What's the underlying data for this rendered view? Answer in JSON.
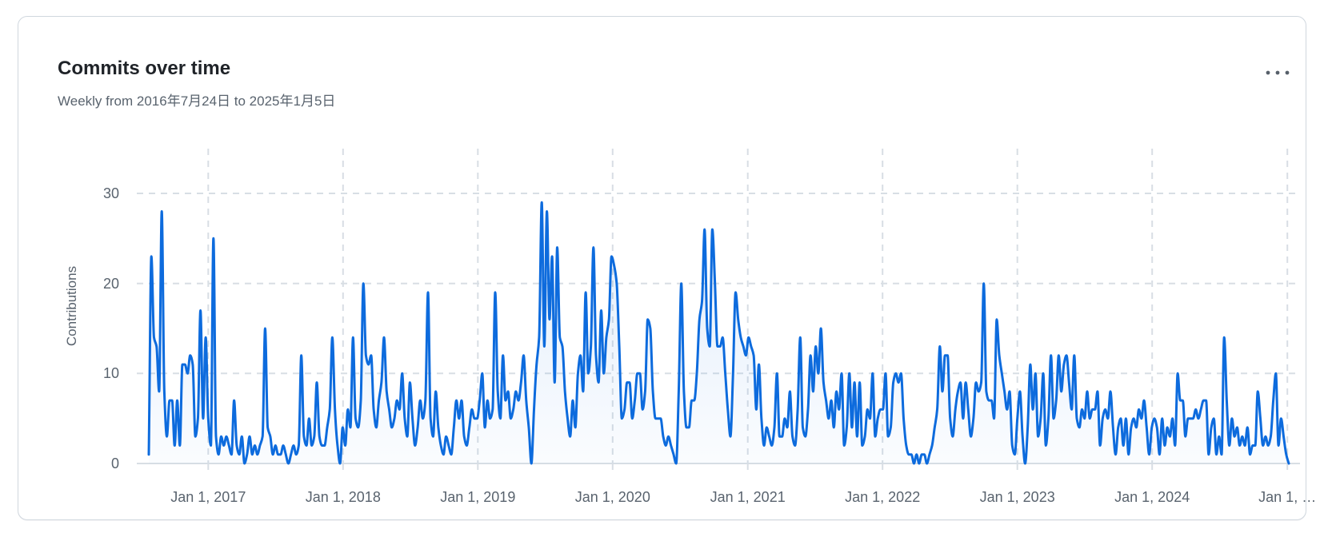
{
  "card": {
    "title": "Commits over time",
    "subtitle": "Weekly from 2016年7月24日 to 2025年1月5日",
    "menu_icon": "kebab-horizontal"
  },
  "chart_data": {
    "type": "area",
    "title": "Commits over time",
    "interval": "weekly",
    "x_start": "2016-07-24",
    "x_end": "2025-01-05",
    "xlabel": "",
    "ylabel": "Contributions",
    "ylim": [
      0,
      35
    ],
    "y_ticks": [
      0,
      10,
      20,
      30
    ],
    "x_ticks": [
      "Jan 1, 2017",
      "Jan 1, 2018",
      "Jan 1, 2019",
      "Jan 1, 2020",
      "Jan 1, 2021",
      "Jan 1, 2022",
      "Jan 1, 2023",
      "Jan 1, 2024",
      "Jan 1, …"
    ],
    "grid": "dashed",
    "legend": "none",
    "line_color": "#0d6bdd",
    "area_fill_top": "rgba(13,107,221,0.15)",
    "area_fill_bottom": "rgba(13,107,221,0.02)",
    "grid_color": "#d8dee4",
    "axis_text_color": "#59636e",
    "icon_color": "#57606a",
    "values": [
      1,
      23,
      14,
      13,
      8,
      28,
      8,
      3,
      7,
      7,
      2,
      7,
      2,
      11,
      11,
      10,
      12,
      11,
      3,
      5,
      17,
      5,
      14,
      5,
      2,
      25,
      3,
      1,
      3,
      2,
      3,
      2,
      1,
      7,
      2,
      1,
      3,
      0,
      1,
      3,
      1,
      2,
      1,
      2,
      3,
      15,
      4,
      3,
      1,
      2,
      1,
      1,
      2,
      1,
      0,
      1,
      2,
      1,
      2,
      12,
      3,
      2,
      5,
      2,
      3,
      9,
      3,
      2,
      2,
      4,
      6,
      14,
      6,
      2,
      0,
      4,
      2,
      6,
      4,
      14,
      5,
      4,
      7,
      20,
      12,
      11,
      12,
      6,
      4,
      7,
      9,
      14,
      8,
      6,
      4,
      5,
      7,
      6,
      10,
      5,
      3,
      9,
      5,
      2,
      4,
      7,
      5,
      7,
      19,
      5,
      3,
      8,
      4,
      2,
      1,
      3,
      2,
      1,
      4,
      7,
      5,
      7,
      3,
      2,
      4,
      6,
      5,
      5,
      7,
      10,
      4,
      7,
      5,
      6,
      19,
      8,
      5,
      12,
      7,
      8,
      5,
      6,
      8,
      7,
      9,
      12,
      7,
      4,
      0,
      6,
      11,
      14,
      29,
      13,
      28,
      16,
      23,
      9,
      24,
      14,
      13,
      8,
      5,
      3,
      7,
      4,
      10,
      12,
      8,
      19,
      10,
      13,
      24,
      12,
      9,
      17,
      10,
      14,
      16,
      23,
      22,
      20,
      13,
      5,
      6,
      9,
      9,
      5,
      7,
      10,
      10,
      6,
      8,
      16,
      15,
      8,
      5,
      5,
      5,
      3,
      2,
      3,
      2,
      1,
      0,
      8,
      20,
      8,
      4,
      4,
      7,
      7,
      10,
      16,
      18,
      26,
      15,
      13,
      26,
      20,
      13,
      13,
      14,
      10,
      6,
      3,
      10,
      19,
      16,
      14,
      13,
      12,
      14,
      13,
      12,
      6,
      11,
      5,
      2,
      4,
      3,
      2,
      4,
      10,
      3,
      3,
      5,
      4,
      8,
      3,
      2,
      6,
      14,
      4,
      3,
      6,
      12,
      8,
      13,
      10,
      15,
      9,
      7,
      5,
      7,
      4,
      8,
      6,
      10,
      2,
      4,
      10,
      4,
      9,
      3,
      9,
      2,
      3,
      6,
      5,
      10,
      3,
      5,
      6,
      6,
      10,
      3,
      4,
      9,
      10,
      9,
      10,
      5,
      2,
      1,
      1,
      0,
      1,
      0,
      1,
      1,
      0,
      1,
      2,
      4,
      6,
      13,
      8,
      12,
      12,
      5,
      3,
      6,
      8,
      9,
      5,
      9,
      6,
      3,
      5,
      9,
      8,
      9,
      20,
      8,
      7,
      7,
      5,
      16,
      12,
      10,
      8,
      6,
      8,
      2,
      1,
      5,
      8,
      3,
      0,
      4,
      11,
      6,
      10,
      3,
      5,
      10,
      2,
      5,
      12,
      5,
      7,
      12,
      8,
      11,
      12,
      9,
      6,
      12,
      5,
      4,
      6,
      5,
      8,
      5,
      6,
      6,
      8,
      2,
      5,
      6,
      5,
      8,
      4,
      1,
      4,
      5,
      2,
      5,
      1,
      4,
      5,
      4,
      6,
      5,
      7,
      4,
      1,
      4,
      5,
      4,
      1,
      5,
      2,
      4,
      3,
      5,
      2,
      10,
      7,
      7,
      3,
      5,
      5,
      5,
      6,
      5,
      6,
      7,
      7,
      1,
      4,
      5,
      1,
      3,
      1,
      14,
      7,
      2,
      5,
      3,
      4,
      2,
      3,
      2,
      4,
      1,
      2,
      2,
      8,
      5,
      2,
      3,
      2,
      3,
      7,
      10,
      2,
      5,
      3,
      1,
      0
    ]
  }
}
